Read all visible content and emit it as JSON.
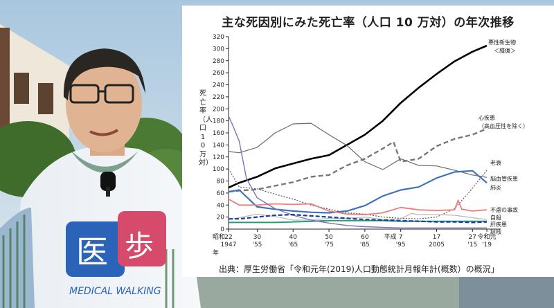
{
  "colors": {
    "malignant": "#000000",
    "heart": "#777777",
    "senility": "#555555",
    "cerebrovascular": "#6a6a6a",
    "pneumonia": "#3f73b8",
    "accident": "#f07c7c",
    "suicide": "#b7b7b7",
    "liver": "#2e9a74",
    "tuberculosis": "#7b72b8",
    "dashed_blue": "#1f3aa0"
  },
  "chart_data": {
    "type": "line",
    "title": "主な死因別にみた死亡率（人口 10 万対）の年次推移",
    "ylabel": "死亡率（人口10万対）",
    "ylim": [
      0,
      320
    ],
    "yticks": [
      0,
      20,
      40,
      60,
      80,
      100,
      120,
      140,
      160,
      180,
      200,
      220,
      240,
      260,
      280,
      300,
      320
    ],
    "xlim": [
      1947,
      2019
    ],
    "xticks": [
      {
        "x": 1947,
        "top": "22",
        "bottom": "1947"
      },
      {
        "x": 1955,
        "top": "30",
        "bottom": "'55"
      },
      {
        "x": 1965,
        "top": "40",
        "bottom": "'65"
      },
      {
        "x": 1975,
        "top": "50",
        "bottom": "'75"
      },
      {
        "x": 1985,
        "top": "60",
        "bottom": "'85"
      },
      {
        "x": 1995,
        "top": "7",
        "bottom": "'95"
      },
      {
        "x": 2005,
        "top": "17",
        "bottom": "2005"
      },
      {
        "x": 2015,
        "top": "27",
        "bottom": "'15"
      },
      {
        "x": 2019,
        "top": "令和元",
        "bottom": "'19"
      }
    ],
    "era_labels": {
      "showa": "昭和",
      "heisei": "平成",
      "nen": "年"
    },
    "series": [
      {
        "key": "malignant",
        "name": "悪性新生物\n＜腫瘍＞",
        "style": "solid-thick",
        "x": [
          1947,
          1950,
          1955,
          1960,
          1965,
          1970,
          1975,
          1980,
          1985,
          1990,
          1995,
          2000,
          2005,
          2010,
          2015,
          2019
        ],
        "y": [
          69,
          77,
          87,
          101,
          109,
          117,
          123,
          140,
          157,
          180,
          210,
          235,
          258,
          279,
          295,
          305
        ]
      },
      {
        "key": "heart",
        "name": "心疾患\n（高血圧性を除く）",
        "style": "dashed-thick",
        "x": [
          1947,
          1950,
          1955,
          1960,
          1965,
          1970,
          1975,
          1980,
          1985,
          1990,
          1993,
          1994,
          1995,
          2000,
          2005,
          2010,
          2015,
          2019
        ],
        "y": [
          62,
          64,
          66,
          72,
          78,
          87,
          90,
          106,
          117,
          134,
          145,
          128,
          112,
          117,
          138,
          150,
          157,
          167
        ]
      },
      {
        "key": "senility",
        "name": "老衰",
        "style": "dotted",
        "x": [
          1947,
          1950,
          1955,
          1960,
          1965,
          1970,
          1975,
          1980,
          1985,
          1990,
          1995,
          2000,
          2005,
          2010,
          2015,
          2019
        ],
        "y": [
          100,
          70,
          67,
          58,
          50,
          40,
          33,
          27,
          25,
          20,
          18,
          17,
          20,
          34,
          68,
          98
        ]
      },
      {
        "key": "cerebrovascular",
        "name": "脳血管疾患",
        "style": "solid-thin",
        "x": [
          1947,
          1950,
          1955,
          1960,
          1965,
          1970,
          1975,
          1980,
          1985,
          1990,
          1995,
          2000,
          2005,
          2010,
          2015,
          2019
        ],
        "y": [
          129,
          127,
          136,
          160,
          175,
          176,
          157,
          139,
          112,
          99,
          117,
          106,
          105,
          98,
          90,
          86
        ]
      },
      {
        "key": "pneumonia",
        "name": "肺炎",
        "style": "solid-blue",
        "x": [
          1947,
          1950,
          1955,
          1960,
          1965,
          1970,
          1975,
          1980,
          1985,
          1990,
          1995,
          2000,
          2005,
          2010,
          2015,
          2019
        ],
        "y": [
          62,
          65,
          37,
          33,
          30,
          28,
          27,
          30,
          39,
          55,
          65,
          70,
          85,
          95,
          97,
          77
        ]
      },
      {
        "key": "accident",
        "name": "不慮の事故",
        "style": "solid-pink",
        "x": [
          1947,
          1950,
          1955,
          1960,
          1965,
          1970,
          1975,
          1980,
          1985,
          1990,
          1995,
          2000,
          2005,
          2010,
          2011,
          2012,
          2015,
          2019
        ],
        "y": [
          50,
          40,
          40,
          42,
          41,
          42,
          30,
          25,
          24,
          27,
          36,
          32,
          31,
          32,
          48,
          33,
          30,
          32
        ]
      },
      {
        "key": "suicide",
        "name": "自殺",
        "style": "solid-lightgray",
        "x": [
          1947,
          1950,
          1955,
          1960,
          1965,
          1970,
          1975,
          1980,
          1985,
          1990,
          1995,
          1998,
          2000,
          2005,
          2010,
          2015,
          2019
        ],
        "y": [
          16,
          19,
          25,
          21,
          15,
          15,
          18,
          18,
          20,
          16,
          17,
          26,
          24,
          24,
          23,
          19,
          16
        ]
      },
      {
        "key": "liver",
        "name": "肝疾患",
        "style": "solid-green",
        "x": [
          1947,
          1950,
          1955,
          1960,
          1965,
          1970,
          1975,
          1980,
          1985,
          1990,
          1995,
          2000,
          2005,
          2010,
          2015,
          2019
        ],
        "y": [
          11,
          11,
          11,
          11,
          12,
          13,
          14,
          14,
          14,
          14,
          13,
          13,
          13,
          13,
          13,
          13
        ]
      },
      {
        "key": "tuberculosis",
        "name": "結核",
        "style": "solid-purple",
        "x": [
          1947,
          1948,
          1950,
          1952,
          1955,
          1960,
          1965,
          1970,
          1975,
          1980,
          1985,
          1990,
          1995,
          2000,
          2005,
          2010,
          2015,
          2019
        ],
        "y": [
          188,
          175,
          146,
          84,
          52,
          34,
          23,
          15,
          10,
          6,
          4,
          3,
          2,
          2,
          2,
          2,
          2,
          2
        ]
      },
      {
        "key": "dashed_blue",
        "name": "",
        "style": "dashed-blue",
        "x": [
          1947,
          1950,
          1955,
          1960,
          1965,
          1970,
          1975,
          1980,
          1985,
          1990,
          1995,
          2000,
          2005,
          2010,
          2015,
          2019
        ],
        "y": [
          17,
          17,
          20,
          23,
          24,
          22,
          20,
          18,
          16,
          15,
          14,
          13,
          12,
          12,
          11,
          12
        ]
      }
    ],
    "grid": false,
    "legend": "inline-right"
  },
  "source": "出典：厚生労働省「令和元年(2019)人口動態統計月報年計(概数）の概況」"
}
